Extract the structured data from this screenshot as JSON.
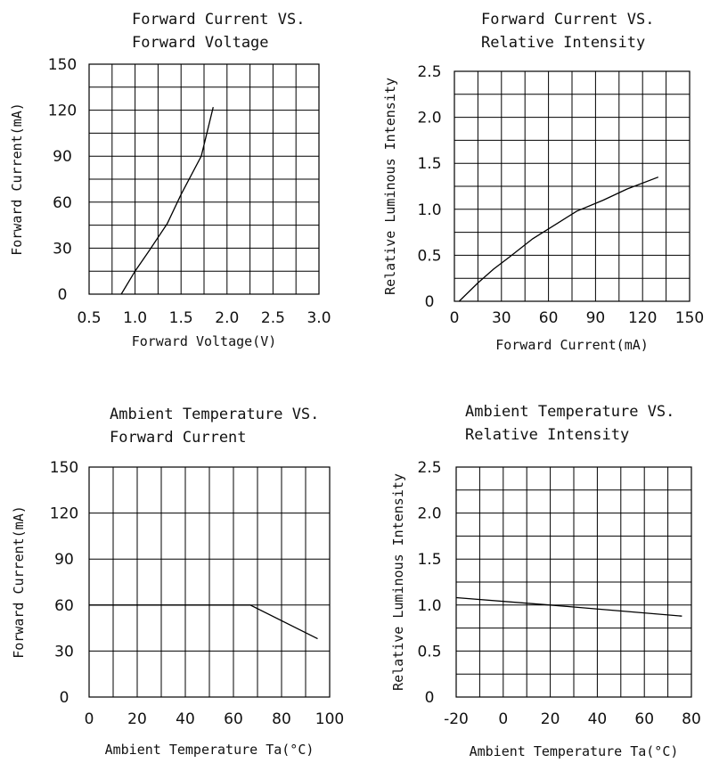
{
  "chart_data": [
    {
      "type": "line",
      "title_lines": [
        "Forward Current VS.",
        "Forward Voltage"
      ],
      "xlabel": "Forward Voltage(V)",
      "ylabel": "Forward Current(mA)",
      "xlim": [
        0.5,
        3.0
      ],
      "ylim": [
        0,
        150
      ],
      "x_ticks": [
        "0.5",
        "1.0",
        "1.5",
        "2.0",
        "2.5",
        "3.0"
      ],
      "y_ticks": [
        "0",
        "30",
        "60",
        "90",
        "120",
        "150"
      ],
      "grid": true,
      "series": [
        {
          "x": [
            0.85,
            1.0,
            1.15,
            1.35,
            1.5,
            1.72,
            1.85
          ],
          "y": [
            0,
            15,
            28,
            46,
            65,
            90,
            122
          ]
        }
      ]
    },
    {
      "type": "line",
      "title_lines": [
        "Forward Current VS.",
        "Relative Intensity"
      ],
      "xlabel": "Forward Current(mA)",
      "ylabel": "Relative Luminous Intensity",
      "xlim": [
        0,
        150
      ],
      "ylim": [
        0,
        2.5
      ],
      "x_ticks": [
        "0",
        "30",
        "60",
        "90",
        "120",
        "150"
      ],
      "y_ticks": [
        "0",
        "0.5",
        "1.0",
        "1.5",
        "2.0",
        "2.5"
      ],
      "grid": true,
      "series": [
        {
          "x": [
            3,
            15,
            25,
            35,
            50,
            65,
            78,
            95,
            110,
            130
          ],
          "y": [
            0,
            0.2,
            0.35,
            0.48,
            0.68,
            0.84,
            0.98,
            1.1,
            1.22,
            1.35
          ]
        }
      ]
    },
    {
      "type": "line",
      "title_lines": [
        "Ambient Temperature VS.",
        "Forward Current"
      ],
      "xlabel": "Ambient Temperature Ta(°C)",
      "ylabel": "Forward Current(mA)",
      "xlim": [
        0,
        100
      ],
      "ylim": [
        0,
        150
      ],
      "x_ticks": [
        "0",
        "20",
        "40",
        "60",
        "80",
        "100"
      ],
      "y_ticks": [
        "0",
        "30",
        "60",
        "90",
        "120",
        "150"
      ],
      "grid": true,
      "series": [
        {
          "x": [
            0,
            67,
            95
          ],
          "y": [
            60,
            60,
            38
          ]
        }
      ]
    },
    {
      "type": "line",
      "title_lines": [
        "Ambient Temperature VS.",
        "Relative Intensity"
      ],
      "xlabel": "Ambient Temperature Ta(°C)",
      "ylabel": "Relative Luminous Intensity",
      "xlim": [
        -20,
        80
      ],
      "ylim": [
        0,
        2.5
      ],
      "x_ticks": [
        "-20",
        "0",
        "20",
        "40",
        "60",
        "80"
      ],
      "y_ticks": [
        "0",
        "0.5",
        "1.0",
        "1.5",
        "2.0",
        "2.5"
      ],
      "grid": true,
      "series": [
        {
          "x": [
            -20,
            20,
            76
          ],
          "y": [
            1.08,
            1.0,
            0.88
          ]
        }
      ]
    }
  ]
}
